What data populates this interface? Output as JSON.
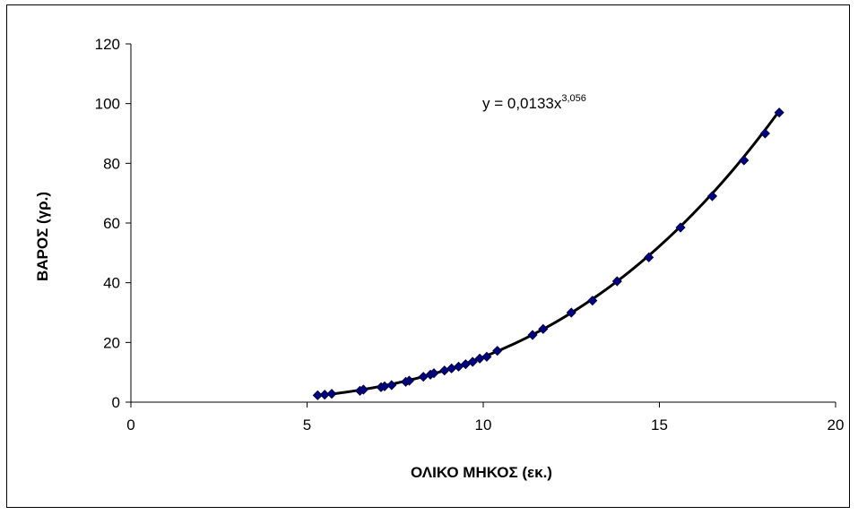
{
  "chart_data": {
    "type": "scatter",
    "xlabel": "ΟΛΙΚΟ ΜΗΚΟΣ (εκ.)",
    "ylabel": "ΒΑΡΟΣ (γρ.)",
    "xlim": [
      0,
      20
    ],
    "ylim": [
      0,
      120
    ],
    "xticks": [
      0,
      5,
      10,
      15,
      20
    ],
    "yticks": [
      0,
      20,
      40,
      60,
      80,
      100,
      120
    ],
    "grid": false,
    "legend": "none",
    "marker": "diamond",
    "marker_color": "#000080",
    "trendline": {
      "type": "power",
      "coefficient": 0.0133,
      "exponent": 3.056,
      "label_prefix": "y = 0,0133x",
      "label_exponent": "3,056",
      "color": "#000000"
    },
    "series": [
      {
        "points": [
          [
            5.3,
            2.3
          ],
          [
            5.5,
            2.5
          ],
          [
            5.7,
            2.8
          ],
          [
            6.5,
            3.8
          ],
          [
            6.6,
            4.2
          ],
          [
            7.1,
            5.0
          ],
          [
            7.2,
            5.3
          ],
          [
            7.4,
            5.7
          ],
          [
            7.8,
            6.8
          ],
          [
            7.9,
            7.2
          ],
          [
            8.3,
            8.5
          ],
          [
            8.5,
            9.2
          ],
          [
            8.6,
            9.7
          ],
          [
            8.9,
            10.6
          ],
          [
            9.1,
            11.3
          ],
          [
            9.3,
            11.9
          ],
          [
            9.5,
            12.7
          ],
          [
            9.7,
            13.5
          ],
          [
            9.9,
            14.6
          ],
          [
            10.1,
            15.2
          ],
          [
            10.4,
            17.2
          ],
          [
            11.4,
            22.5
          ],
          [
            11.7,
            24.5
          ],
          [
            12.5,
            30.0
          ],
          [
            13.1,
            34.0
          ],
          [
            13.8,
            40.5
          ],
          [
            14.7,
            48.5
          ],
          [
            15.6,
            58.5
          ],
          [
            16.5,
            69.0
          ],
          [
            17.4,
            81.0
          ],
          [
            18.0,
            90.0
          ],
          [
            18.4,
            97.0
          ]
        ]
      }
    ]
  }
}
